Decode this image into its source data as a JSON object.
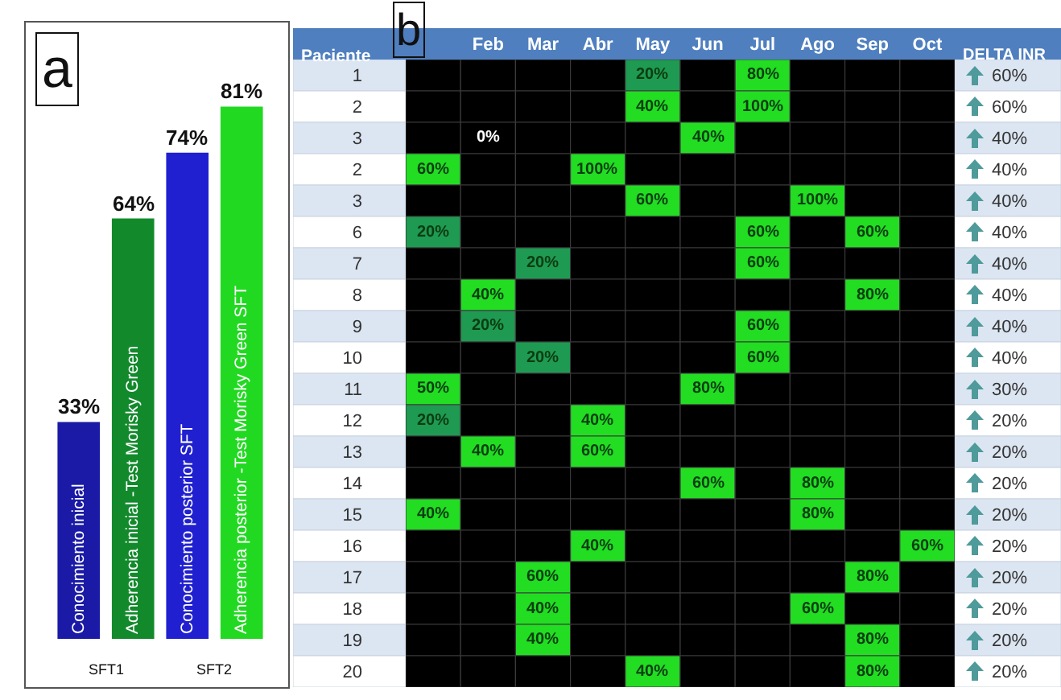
{
  "chart_data": [
    {
      "type": "bar",
      "title": "a",
      "categories": [
        "Conocimiento inicial",
        "Adherencia inicial -Test Morisky Green",
        "Conocimiento posterior SFT",
        "Adherencia posterior -Test Morisky Green SFT"
      ],
      "values": [
        33,
        64,
        74,
        81
      ],
      "colors": [
        "#1a1aa6",
        "#128a2c",
        "#2020d0",
        "#22d922"
      ],
      "value_labels": [
        "33%",
        "64%",
        "74%",
        "81%"
      ],
      "annotations": [
        "SFT1",
        "SFT2"
      ]
    },
    {
      "type": "heatmap",
      "title": "b",
      "ylabel": "Paciente",
      "y2label": "DELTA INR",
      "categories": [
        null,
        "Feb",
        "Mar",
        "Abr",
        "May",
        "Jun",
        "Jul",
        "Ago",
        "Sep",
        "Oct"
      ],
      "y_categories": [
        "1",
        "2",
        "3",
        "2",
        "3",
        "6",
        "7",
        "8",
        "9",
        "10",
        "11",
        "12",
        "13",
        "14",
        "15",
        "16",
        "17",
        "18",
        "19",
        "20"
      ],
      "y2_categories": [
        "60%",
        "60%",
        "40%",
        "40%",
        "40%",
        "40%",
        "40%",
        "40%",
        "40%",
        "40%",
        "30%",
        "20%",
        "20%",
        "20%",
        "20%",
        "20%",
        "20%",
        "20%",
        "20%",
        "20%"
      ],
      "cells": [
        [
          null,
          null,
          null,
          null,
          20,
          null,
          80,
          null,
          null,
          null
        ],
        [
          null,
          null,
          null,
          null,
          40,
          null,
          100,
          null,
          null,
          null
        ],
        [
          null,
          0,
          null,
          null,
          null,
          40,
          null,
          null,
          null,
          null
        ],
        [
          60,
          null,
          null,
          100,
          null,
          null,
          null,
          null,
          null,
          null
        ],
        [
          null,
          null,
          null,
          null,
          60,
          null,
          null,
          100,
          null,
          null
        ],
        [
          20,
          null,
          null,
          null,
          null,
          null,
          60,
          null,
          60,
          null
        ],
        [
          null,
          null,
          20,
          null,
          null,
          null,
          60,
          null,
          null,
          null
        ],
        [
          null,
          40,
          null,
          null,
          null,
          null,
          null,
          null,
          80,
          null
        ],
        [
          null,
          20,
          null,
          null,
          null,
          null,
          60,
          null,
          null,
          null
        ],
        [
          null,
          null,
          20,
          null,
          null,
          null,
          60,
          null,
          null,
          null
        ],
        [
          50,
          null,
          null,
          null,
          null,
          80,
          null,
          null,
          null,
          null
        ],
        [
          20,
          null,
          null,
          40,
          null,
          null,
          null,
          null,
          null,
          null
        ],
        [
          null,
          40,
          null,
          60,
          null,
          null,
          null,
          null,
          null,
          null
        ],
        [
          null,
          null,
          null,
          null,
          null,
          60,
          null,
          80,
          null,
          null
        ],
        [
          40,
          null,
          null,
          null,
          null,
          null,
          null,
          80,
          null,
          null
        ],
        [
          null,
          null,
          null,
          40,
          null,
          null,
          null,
          null,
          null,
          60
        ],
        [
          null,
          null,
          60,
          null,
          null,
          null,
          null,
          null,
          80,
          null
        ],
        [
          null,
          null,
          40,
          null,
          null,
          null,
          null,
          60,
          null,
          null
        ],
        [
          null,
          null,
          40,
          null,
          null,
          null,
          null,
          null,
          80,
          null
        ],
        [
          null,
          null,
          null,
          null,
          40,
          null,
          null,
          null,
          80,
          null
        ]
      ],
      "cell_labels": [
        [
          null,
          null,
          null,
          null,
          "20%",
          null,
          "80%",
          null,
          null,
          null
        ],
        [
          null,
          null,
          null,
          null,
          "40%",
          null,
          "100%",
          null,
          null,
          null
        ],
        [
          null,
          "0%",
          null,
          null,
          null,
          "40%",
          null,
          null,
          null,
          null
        ],
        [
          "60%",
          null,
          null,
          "100%",
          null,
          null,
          null,
          null,
          null,
          null
        ],
        [
          null,
          null,
          null,
          null,
          "60%",
          null,
          null,
          "100%",
          null,
          null
        ],
        [
          "20%",
          null,
          null,
          null,
          null,
          null,
          "60%",
          null,
          "60%",
          null
        ],
        [
          null,
          null,
          "20%",
          null,
          null,
          null,
          "60%",
          null,
          null,
          null
        ],
        [
          null,
          "40%",
          null,
          null,
          null,
          null,
          null,
          null,
          "80%",
          null
        ],
        [
          null,
          "20%",
          null,
          null,
          null,
          null,
          "60%",
          null,
          null,
          null
        ],
        [
          null,
          null,
          "20%",
          null,
          null,
          null,
          "60%",
          null,
          null,
          null
        ],
        [
          "50%",
          null,
          null,
          null,
          null,
          "80%",
          null,
          null,
          null,
          null
        ],
        [
          "20%",
          null,
          null,
          "40%",
          null,
          null,
          null,
          null,
          null,
          null
        ],
        [
          null,
          "40%",
          null,
          "60%",
          null,
          null,
          null,
          null,
          null,
          null
        ],
        [
          null,
          null,
          null,
          null,
          null,
          "60%",
          null,
          "80%",
          null,
          null
        ],
        [
          "40%",
          null,
          null,
          null,
          null,
          null,
          null,
          "80%",
          null,
          null
        ],
        [
          null,
          null,
          null,
          "40%",
          null,
          null,
          null,
          null,
          null,
          "60%"
        ],
        [
          null,
          null,
          "60%",
          null,
          null,
          null,
          null,
          null,
          "80%",
          null
        ],
        [
          null,
          null,
          "40%",
          null,
          null,
          null,
          null,
          "60%",
          null,
          null
        ],
        [
          null,
          null,
          "40%",
          null,
          null,
          null,
          null,
          null,
          "80%",
          null
        ],
        [
          null,
          null,
          null,
          null,
          "40%",
          null,
          null,
          null,
          "80%",
          null
        ]
      ]
    }
  ]
}
